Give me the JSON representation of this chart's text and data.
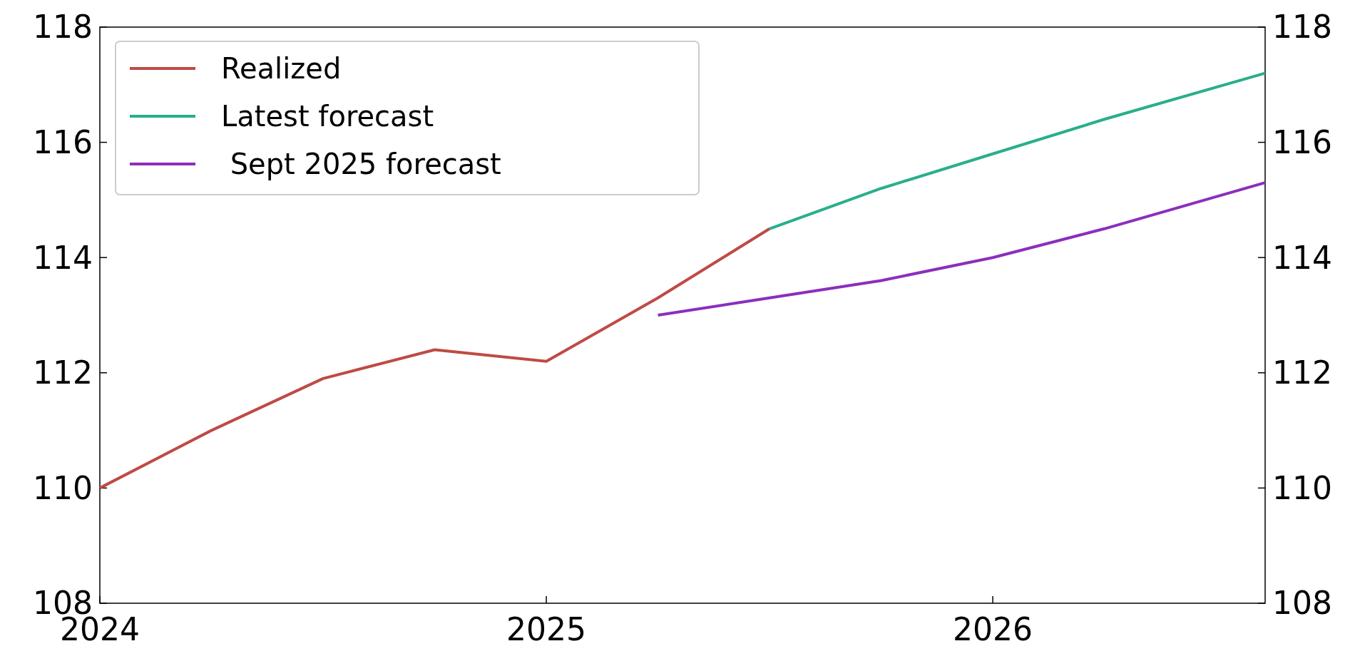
{
  "chart_data": {
    "type": "line",
    "xlim": [
      2024,
      2026.61
    ],
    "xticks": [
      2024,
      2025,
      2026
    ],
    "ylim": [
      108,
      118
    ],
    "yticks": [
      108,
      110,
      112,
      114,
      116,
      118
    ],
    "y2lim": [
      108,
      118
    ],
    "y2ticks": [
      108,
      110,
      112,
      114,
      116,
      118
    ],
    "legend": "top left",
    "grid": false,
    "line_style": "solid",
    "marker": "none",
    "series": [
      {
        "name": "Realized",
        "color": "#bf4a45",
        "x": [
          2024,
          2024.25,
          2024.5,
          2024.75,
          2025,
          2025.25,
          2025.5
        ],
        "values": [
          110.0,
          111.0,
          111.9,
          112.4,
          112.2,
          113.3,
          114.5
        ]
      },
      {
        "name": "Latest forecast",
        "color": "#2aae8c",
        "x": [
          2025.5,
          2025.75,
          2026,
          2026.25,
          2026.61
        ],
        "values": [
          114.5,
          115.2,
          115.8,
          116.4,
          117.2
        ]
      },
      {
        "name": " Sept 2025 forecast",
        "color": "#8b2ebd",
        "x": [
          2025.25,
          2025.5,
          2025.75,
          2026,
          2026.25,
          2026.61
        ],
        "values": [
          113.0,
          113.3,
          113.6,
          114.0,
          114.5,
          115.3
        ]
      }
    ]
  }
}
